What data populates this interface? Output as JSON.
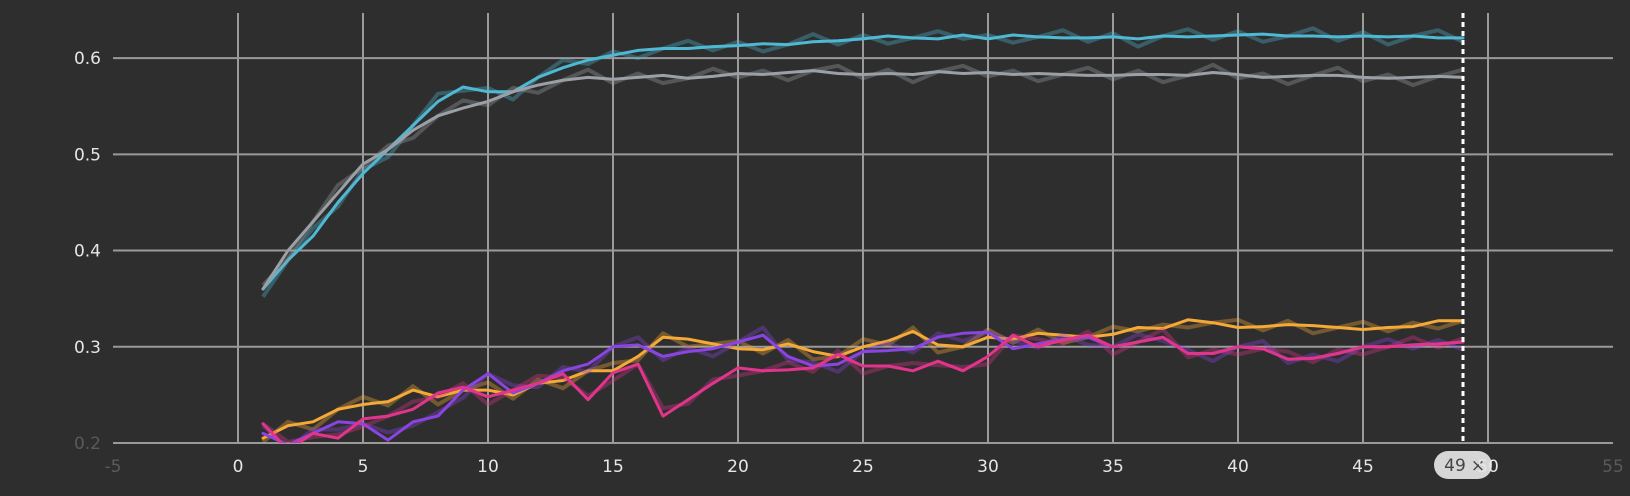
{
  "chart_data": {
    "type": "line",
    "xlim": [
      -5,
      55
    ],
    "ylim": [
      0.2,
      0.65
    ],
    "x_ticks": [
      -5,
      0,
      5,
      10,
      15,
      20,
      25,
      30,
      35,
      40,
      45,
      50,
      55
    ],
    "y_ticks": [
      0.2,
      0.3,
      0.4,
      0.5,
      0.6
    ],
    "x_tick_labels": [
      "-5",
      "0",
      "5",
      "10",
      "15",
      "20",
      "25",
      "30",
      "35",
      "40",
      "45",
      "50",
      "55"
    ],
    "y_tick_labels": [
      "0.2",
      "0.3",
      "0.4",
      "0.5",
      "0.6"
    ],
    "grid": true,
    "cursor": {
      "x": 49,
      "label": "49",
      "close_symbol": "×"
    },
    "x": [
      1,
      2,
      3,
      4,
      5,
      6,
      7,
      8,
      9,
      10,
      11,
      12,
      13,
      14,
      15,
      16,
      17,
      18,
      19,
      20,
      21,
      22,
      23,
      24,
      25,
      26,
      27,
      28,
      29,
      30,
      31,
      32,
      33,
      34,
      35,
      36,
      37,
      38,
      39,
      40,
      41,
      42,
      43,
      44,
      45,
      46,
      47,
      48,
      49
    ],
    "series": [
      {
        "color": "#4fb8d3",
        "values": [
          0.36,
          0.39,
          0.415,
          0.45,
          0.48,
          0.505,
          0.53,
          0.555,
          0.57,
          0.565,
          0.565,
          0.58,
          0.59,
          0.598,
          0.603,
          0.608,
          0.61,
          0.61,
          0.612,
          0.613,
          0.615,
          0.614,
          0.617,
          0.618,
          0.62,
          0.623,
          0.621,
          0.62,
          0.624,
          0.62,
          0.624,
          0.622,
          0.621,
          0.621,
          0.622,
          0.62,
          0.623,
          0.622,
          0.623,
          0.624,
          0.625,
          0.623,
          0.623,
          0.622,
          0.623,
          0.622,
          0.623,
          0.621,
          0.621
        ]
      },
      {
        "color": "#9aa0a6",
        "values": [
          0.36,
          0.4,
          0.43,
          0.46,
          0.49,
          0.505,
          0.525,
          0.54,
          0.548,
          0.555,
          0.565,
          0.572,
          0.577,
          0.58,
          0.578,
          0.58,
          0.582,
          0.579,
          0.581,
          0.584,
          0.583,
          0.585,
          0.587,
          0.584,
          0.583,
          0.584,
          0.583,
          0.586,
          0.584,
          0.585,
          0.583,
          0.584,
          0.583,
          0.582,
          0.582,
          0.583,
          0.583,
          0.582,
          0.585,
          0.583,
          0.58,
          0.581,
          0.582,
          0.582,
          0.58,
          0.579,
          0.58,
          0.581,
          0.58
        ]
      },
      {
        "color": "#f5a936",
        "values": [
          0.205,
          0.218,
          0.222,
          0.235,
          0.24,
          0.243,
          0.255,
          0.248,
          0.255,
          0.255,
          0.25,
          0.262,
          0.265,
          0.275,
          0.275,
          0.29,
          0.31,
          0.308,
          0.303,
          0.298,
          0.297,
          0.303,
          0.295,
          0.29,
          0.3,
          0.306,
          0.316,
          0.302,
          0.3,
          0.31,
          0.308,
          0.314,
          0.312,
          0.31,
          0.313,
          0.32,
          0.319,
          0.328,
          0.325,
          0.32,
          0.321,
          0.323,
          0.322,
          0.32,
          0.318,
          0.32,
          0.321,
          0.327,
          0.327
        ]
      },
      {
        "color": "#8a44e0",
        "values": [
          0.21,
          0.198,
          0.21,
          0.222,
          0.22,
          0.203,
          0.222,
          0.228,
          0.255,
          0.272,
          0.252,
          0.262,
          0.275,
          0.282,
          0.3,
          0.302,
          0.29,
          0.295,
          0.298,
          0.305,
          0.312,
          0.29,
          0.28,
          0.282,
          0.295,
          0.296,
          0.298,
          0.31,
          0.314,
          0.315,
          0.298,
          0.303,
          0.308,
          0.31,
          0.3,
          0.305,
          0.31,
          0.293,
          0.293,
          0.3,
          0.298,
          0.287,
          0.288,
          0.293,
          0.3,
          0.3,
          0.302,
          0.303,
          0.305
        ]
      },
      {
        "color": "#e0358b",
        "values": [
          0.22,
          0.193,
          0.21,
          0.205,
          0.225,
          0.228,
          0.235,
          0.252,
          0.258,
          0.248,
          0.255,
          0.262,
          0.272,
          0.245,
          0.273,
          0.282,
          0.228,
          0.245,
          0.262,
          0.278,
          0.275,
          0.276,
          0.278,
          0.292,
          0.28,
          0.28,
          0.275,
          0.285,
          0.275,
          0.29,
          0.312,
          0.3,
          0.307,
          0.312,
          0.3,
          0.305,
          0.31,
          0.293,
          0.293,
          0.3,
          0.298,
          0.287,
          0.288,
          0.293,
          0.3,
          0.3,
          0.302,
          0.303,
          0.305
        ]
      }
    ]
  }
}
